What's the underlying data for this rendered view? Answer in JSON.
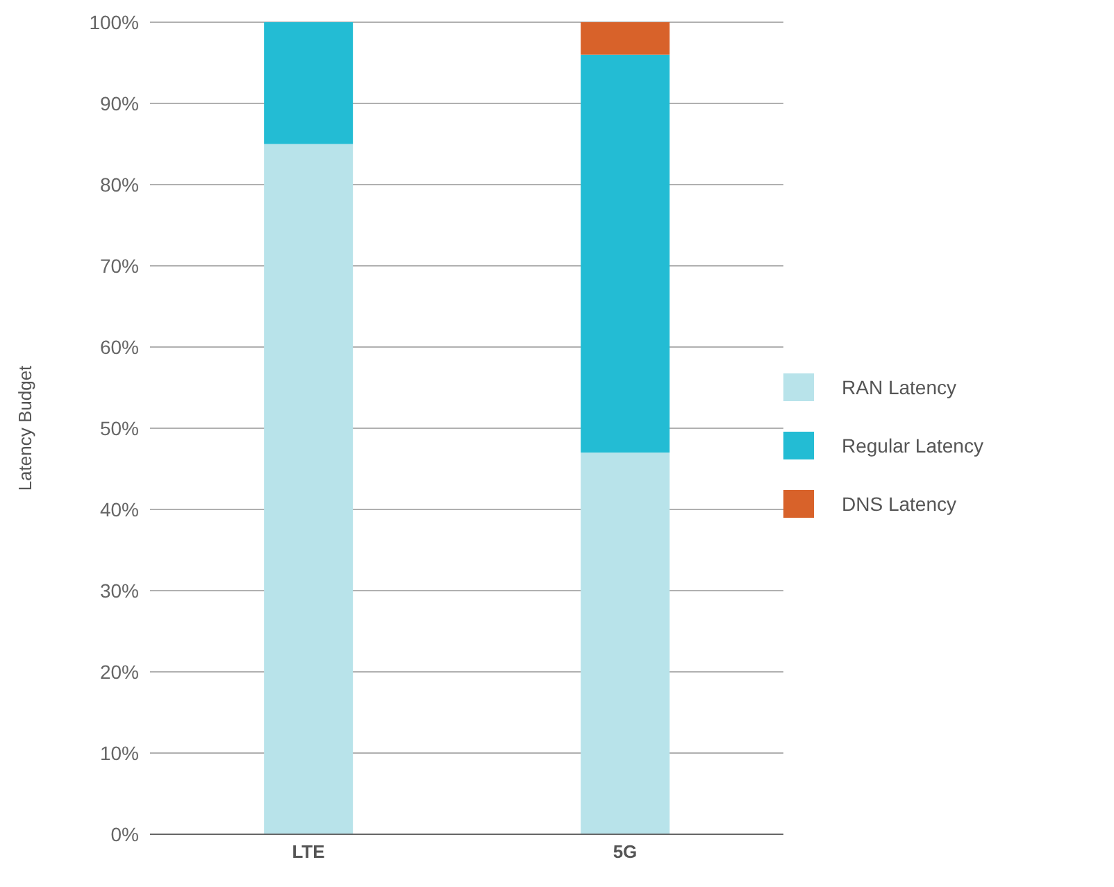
{
  "chart_data": {
    "type": "bar",
    "stacked": true,
    "ylabel": "Latency Budget",
    "categories": [
      "LTE",
      "5G"
    ],
    "series": [
      {
        "name": "RAN Latency",
        "color": "#b8e3ea",
        "values": [
          85,
          47
        ]
      },
      {
        "name": "Regular Latency",
        "color": "#23bcd4",
        "values": [
          15,
          49
        ]
      },
      {
        "name": "DNS Latency",
        "color": "#d8622a",
        "values": [
          0,
          4
        ]
      }
    ],
    "ylim": [
      0,
      100
    ],
    "yticks": [
      {
        "value": 0,
        "label": "0%"
      },
      {
        "value": 10,
        "label": "10%"
      },
      {
        "value": 20,
        "label": "20%"
      },
      {
        "value": 30,
        "label": "30%"
      },
      {
        "value": 40,
        "label": "40%"
      },
      {
        "value": 50,
        "label": "50%"
      },
      {
        "value": 60,
        "label": "60%"
      },
      {
        "value": 70,
        "label": "70%"
      },
      {
        "value": 80,
        "label": "80%"
      },
      {
        "value": 90,
        "label": "90%"
      },
      {
        "value": 100,
        "label": "100%"
      }
    ],
    "grid": "y",
    "legend": "right"
  }
}
